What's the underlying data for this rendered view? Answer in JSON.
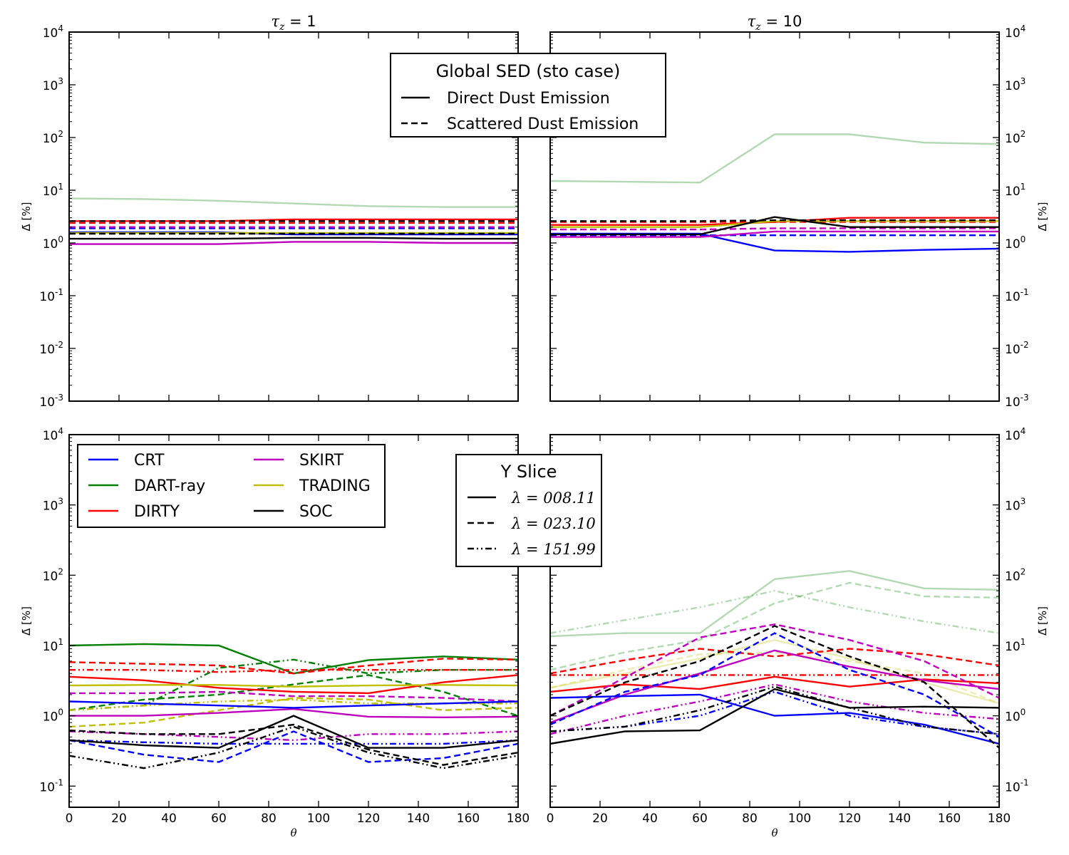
{
  "chart_data": [
    {
      "type": "line",
      "id": "top-left",
      "title_sym": "τ",
      "title_sub": "z",
      "title_value": "1",
      "ylabel": "Δ̄ [%]",
      "xlabel": "",
      "ylog": true,
      "ylim": [
        0.001,
        10000
      ],
      "xlim": [
        0,
        180
      ],
      "yticks": [
        0.001,
        0.01,
        0.1,
        1,
        10,
        100,
        1000,
        10000
      ],
      "ytick_exps": [
        "-3",
        "-2",
        "-1",
        "0",
        "1",
        "2",
        "3",
        "4"
      ],
      "xticks": [],
      "x": [
        0,
        30,
        60,
        90,
        120,
        150,
        180
      ],
      "series": [
        {
          "name": "CRT",
          "color": "#0000ff",
          "dash": "solid",
          "alpha": 1,
          "values": [
            1.6,
            1.6,
            1.6,
            1.45,
            1.45,
            1.45,
            1.45
          ]
        },
        {
          "name": "CRT",
          "color": "#0000ff",
          "dash": "dashed",
          "alpha": 1,
          "values": [
            1.9,
            1.9,
            1.9,
            1.9,
            1.9,
            1.9,
            1.9
          ]
        },
        {
          "name": "DART-ray",
          "color": "#008000",
          "dash": "solid",
          "alpha": 0.3,
          "values": [
            7.0,
            6.8,
            6.3,
            5.6,
            5.0,
            4.8,
            4.8
          ]
        },
        {
          "name": "DIRTY",
          "color": "#ff0000",
          "dash": "solid",
          "alpha": 1,
          "values": [
            2.6,
            2.6,
            2.6,
            2.8,
            2.8,
            2.8,
            2.8
          ]
        },
        {
          "name": "DIRTY",
          "color": "#ff0000",
          "dash": "dashed",
          "alpha": 1,
          "values": [
            2.4,
            2.4,
            2.4,
            2.4,
            2.4,
            2.4,
            2.4
          ]
        },
        {
          "name": "SKIRT",
          "color": "#bf00bf",
          "dash": "solid",
          "alpha": 1,
          "values": [
            0.95,
            0.95,
            0.95,
            1.05,
            1.05,
            1.0,
            1.0
          ]
        },
        {
          "name": "SKIRT",
          "color": "#bf00bf",
          "dash": "dashed",
          "alpha": 1,
          "values": [
            2.0,
            2.0,
            2.0,
            2.0,
            2.0,
            2.0,
            2.0
          ]
        },
        {
          "name": "TRADING",
          "color": "#bfbf00",
          "dash": "solid",
          "alpha": 1,
          "values": [
            1.55,
            1.55,
            1.55,
            1.55,
            1.55,
            1.55,
            1.55
          ]
        },
        {
          "name": "SOC",
          "color": "#000000",
          "dash": "solid",
          "alpha": 1,
          "values": [
            1.2,
            1.2,
            1.2,
            1.25,
            1.25,
            1.2,
            1.2
          ]
        },
        {
          "name": "SOC",
          "color": "#000000",
          "dash": "dashed",
          "alpha": 1,
          "values": [
            2.6,
            2.6,
            2.6,
            2.6,
            2.6,
            2.6,
            2.6
          ]
        },
        {
          "name": "SOC",
          "color": "#000000",
          "dash": "dashed",
          "alpha": 1,
          "values": [
            1.5,
            1.5,
            1.5,
            1.5,
            1.5,
            1.5,
            1.5
          ]
        }
      ]
    },
    {
      "type": "line",
      "id": "top-right",
      "title_sym": "τ",
      "title_sub": "z",
      "title_value": "10",
      "ylabel": "Δ̄ [%]",
      "xlabel": "",
      "ylog": true,
      "ylim": [
        0.001,
        10000
      ],
      "xlim": [
        0,
        180
      ],
      "yticks": [
        0.001,
        0.01,
        0.1,
        1,
        10,
        100,
        1000,
        10000
      ],
      "ytick_exps": [
        "-3",
        "-2",
        "-1",
        "0",
        "1",
        "2",
        "3",
        "4"
      ],
      "xticks": [],
      "x": [
        0,
        30,
        60,
        90,
        120,
        150,
        180
      ],
      "series": [
        {
          "name": "DART-ray",
          "color": "#008000",
          "dash": "solid",
          "alpha": 0.3,
          "values": [
            15,
            14.5,
            14,
            115,
            115,
            80,
            75
          ]
        },
        {
          "name": "CRT",
          "color": "#0000ff",
          "dash": "solid",
          "alpha": 1,
          "values": [
            1.5,
            1.5,
            1.5,
            0.72,
            0.68,
            0.74,
            0.78
          ]
        },
        {
          "name": "CRT",
          "color": "#0000ff",
          "dash": "dashed",
          "alpha": 1,
          "values": [
            1.4,
            1.4,
            1.4,
            1.4,
            1.4,
            1.4,
            1.4
          ]
        },
        {
          "name": "DIRTY",
          "color": "#ff0000",
          "dash": "solid",
          "alpha": 1,
          "values": [
            2.2,
            2.2,
            2.2,
            2.5,
            3.0,
            3.0,
            3.0
          ]
        },
        {
          "name": "DIRTY",
          "color": "#ff0000",
          "dash": "dashed",
          "alpha": 1,
          "values": [
            2.5,
            2.5,
            2.5,
            2.5,
            2.5,
            2.5,
            2.5
          ]
        },
        {
          "name": "SKIRT",
          "color": "#bf00bf",
          "dash": "solid",
          "alpha": 1,
          "values": [
            1.3,
            1.3,
            1.3,
            1.65,
            1.65,
            1.65,
            1.65
          ]
        },
        {
          "name": "SKIRT",
          "color": "#bf00bf",
          "dash": "dashed",
          "alpha": 1,
          "values": [
            1.8,
            1.8,
            1.8,
            1.9,
            1.9,
            1.9,
            1.9
          ]
        },
        {
          "name": "TRADING",
          "color": "#bfbf00",
          "dash": "solid",
          "alpha": 1,
          "values": [
            2.0,
            2.0,
            2.0,
            2.6,
            2.6,
            2.6,
            2.6
          ]
        },
        {
          "name": "SOC",
          "color": "#000000",
          "dash": "solid",
          "alpha": 1,
          "values": [
            1.45,
            1.45,
            1.45,
            3.1,
            2.0,
            2.0,
            2.0
          ]
        },
        {
          "name": "SOC",
          "color": "#000000",
          "dash": "dashed",
          "alpha": 1,
          "values": [
            2.6,
            2.6,
            2.6,
            2.7,
            2.7,
            2.7,
            2.7
          ]
        }
      ]
    },
    {
      "type": "line",
      "id": "bottom-left",
      "title_sym": "",
      "title_sub": "",
      "title_value": "",
      "ylabel": "Δ̄ [%]",
      "xlabel": "θ",
      "ylog": true,
      "ylim": [
        0.05,
        10000
      ],
      "xlim": [
        0,
        180
      ],
      "yticks": [
        0.1,
        1,
        10,
        100,
        1000,
        10000
      ],
      "ytick_exps": [
        "-1",
        "0",
        "1",
        "2",
        "3",
        "4"
      ],
      "xticks": [
        0,
        20,
        40,
        60,
        80,
        100,
        120,
        140,
        160,
        180
      ],
      "x": [
        0,
        30,
        60,
        90,
        120,
        150,
        180
      ],
      "series": [
        {
          "name": "DART-ray",
          "color": "#008000",
          "dash": "solid",
          "alpha": 1,
          "values": [
            10.0,
            10.5,
            10.0,
            4.0,
            6.2,
            7.0,
            6.3
          ]
        },
        {
          "name": "DART-ray",
          "color": "#008000",
          "dash": "dashed",
          "alpha": 1,
          "values": [
            1.2,
            1.7,
            2.0,
            2.8,
            3.8,
            2.2,
            1.0
          ]
        },
        {
          "name": "DART-ray",
          "color": "#008000",
          "dash": "dashdot",
          "alpha": 1,
          "values": [
            1.2,
            1.4,
            4.8,
            6.3,
            4.0,
            4.5,
            4.5
          ]
        },
        {
          "name": "DIRTY",
          "color": "#ff0000",
          "dash": "solid",
          "alpha": 1,
          "values": [
            3.6,
            3.2,
            2.5,
            2.2,
            2.1,
            3.0,
            3.8
          ]
        },
        {
          "name": "DIRTY",
          "color": "#ff0000",
          "dash": "dashed",
          "alpha": 1,
          "values": [
            5.8,
            5.5,
            5.2,
            4.0,
            5.2,
            6.5,
            6.3
          ]
        },
        {
          "name": "DIRTY",
          "color": "#ff0000",
          "dash": "dashdot",
          "alpha": 1,
          "values": [
            4.5,
            4.5,
            4.2,
            4.5,
            4.5,
            4.5,
            4.5
          ]
        },
        {
          "name": "TRADING",
          "color": "#bfbf00",
          "dash": "solid",
          "alpha": 1,
          "values": [
            2.7,
            2.75,
            2.75,
            2.6,
            2.7,
            2.75,
            2.7
          ]
        },
        {
          "name": "TRADING",
          "color": "#bfbf00",
          "dash": "dashed",
          "alpha": 1,
          "values": [
            0.7,
            0.8,
            1.2,
            1.8,
            1.7,
            1.2,
            1.3
          ]
        },
        {
          "name": "TRADING",
          "color": "#bfbf00",
          "dash": "dashdot",
          "alpha": 1,
          "values": [
            1.2,
            1.4,
            1.6,
            1.7,
            1.5,
            1.5,
            1.5
          ]
        },
        {
          "name": "SKIRT",
          "color": "#bf00bf",
          "dash": "solid",
          "alpha": 1,
          "values": [
            1.0,
            1.0,
            1.1,
            1.25,
            0.97,
            0.95,
            0.97
          ]
        },
        {
          "name": "SKIRT",
          "color": "#bf00bf",
          "dash": "dashed",
          "alpha": 1,
          "values": [
            2.1,
            2.1,
            2.2,
            1.9,
            1.9,
            1.8,
            1.6
          ]
        },
        {
          "name": "SKIRT",
          "color": "#bf00bf",
          "dash": "dashdot",
          "alpha": 1,
          "values": [
            0.6,
            0.55,
            0.5,
            0.45,
            0.55,
            0.55,
            0.6
          ]
        },
        {
          "name": "CRT",
          "color": "#0000ff",
          "dash": "solid",
          "alpha": 1,
          "values": [
            1.6,
            1.5,
            1.4,
            1.3,
            1.4,
            1.5,
            1.6
          ]
        },
        {
          "name": "CRT",
          "color": "#0000ff",
          "dash": "dashed",
          "alpha": 1,
          "values": [
            0.45,
            0.28,
            0.22,
            0.6,
            0.22,
            0.25,
            0.4
          ]
        },
        {
          "name": "CRT",
          "color": "#0000ff",
          "dash": "dashdot",
          "alpha": 1,
          "values": [
            0.45,
            0.42,
            0.4,
            0.4,
            0.4,
            0.4,
            0.45
          ]
        },
        {
          "name": "SOC",
          "color": "#000000",
          "dash": "solid",
          "alpha": 1,
          "values": [
            0.45,
            0.38,
            0.35,
            1.0,
            0.35,
            0.35,
            0.45
          ]
        },
        {
          "name": "SOC",
          "color": "#000000",
          "dash": "dashed",
          "alpha": 1,
          "values": [
            0.62,
            0.55,
            0.55,
            0.75,
            0.33,
            0.2,
            0.3
          ]
        },
        {
          "name": "SOC",
          "color": "#000000",
          "dash": "dashdot",
          "alpha": 1,
          "values": [
            0.27,
            0.18,
            0.3,
            0.7,
            0.3,
            0.18,
            0.27
          ]
        }
      ]
    },
    {
      "type": "line",
      "id": "bottom-right",
      "title_sym": "",
      "title_sub": "",
      "title_value": "",
      "ylabel": "Δ̄ [%]",
      "xlabel": "θ",
      "ylog": true,
      "ylim": [
        0.05,
        10000
      ],
      "xlim": [
        0,
        180
      ],
      "yticks": [
        0.1,
        1,
        10,
        100,
        1000,
        10000
      ],
      "ytick_exps": [
        "-1",
        "0",
        "1",
        "2",
        "3",
        "4"
      ],
      "xticks": [
        0,
        20,
        40,
        60,
        80,
        100,
        120,
        140,
        160,
        180
      ],
      "x": [
        0,
        30,
        60,
        90,
        120,
        150,
        180
      ],
      "series": [
        {
          "name": "DART-ray",
          "color": "#008000",
          "dash": "solid",
          "alpha": 0.3,
          "values": [
            13.5,
            15,
            15,
            88,
            115,
            65,
            62
          ]
        },
        {
          "name": "DART-ray",
          "color": "#008000",
          "dash": "dashed",
          "alpha": 0.3,
          "values": [
            4.5,
            8.0,
            12,
            40,
            78,
            50,
            48
          ]
        },
        {
          "name": "DART-ray",
          "color": "#008000",
          "dash": "dashdot",
          "alpha": 0.3,
          "values": [
            15,
            23,
            35,
            60,
            35,
            22,
            15
          ]
        },
        {
          "name": "TRADING",
          "color": "#bfbf00",
          "dash": "solid",
          "alpha": 0.3,
          "values": [
            2.5,
            4.0,
            6.5,
            12,
            6.5,
            3.0,
            1.5
          ]
        },
        {
          "name": "TRADING",
          "color": "#bfbf00",
          "dash": "dashed",
          "alpha": 0.3,
          "values": [
            2.5,
            4.5,
            7.5,
            8.0,
            6.0,
            4.0,
            1.5
          ]
        },
        {
          "name": "DIRTY",
          "color": "#ff0000",
          "dash": "solid",
          "alpha": 1,
          "values": [
            2.2,
            2.8,
            2.4,
            3.6,
            2.6,
            3.3,
            2.9
          ]
        },
        {
          "name": "DIRTY",
          "color": "#ff0000",
          "dash": "dashed",
          "alpha": 1,
          "values": [
            4.0,
            6.2,
            9.0,
            7.0,
            9.0,
            7.5,
            5.2
          ]
        },
        {
          "name": "DIRTY",
          "color": "#ff0000",
          "dash": "dashdot",
          "alpha": 1,
          "values": [
            3.8,
            3.8,
            3.8,
            3.8,
            3.8,
            3.8,
            3.8
          ]
        },
        {
          "name": "SKIRT",
          "color": "#bf00bf",
          "dash": "solid",
          "alpha": 1,
          "values": [
            0.8,
            2.0,
            4.0,
            8.5,
            5.0,
            3.2,
            2.4
          ]
        },
        {
          "name": "SKIRT",
          "color": "#bf00bf",
          "dash": "dashed",
          "alpha": 1,
          "values": [
            1.0,
            3.5,
            13,
            20,
            12,
            6.0,
            1.8
          ]
        },
        {
          "name": "SKIRT",
          "color": "#bf00bf",
          "dash": "dashdot",
          "alpha": 1,
          "values": [
            0.55,
            1.0,
            1.6,
            2.8,
            1.6,
            1.1,
            0.9
          ]
        },
        {
          "name": "CRT",
          "color": "#0000ff",
          "dash": "solid",
          "alpha": 1,
          "values": [
            1.8,
            1.9,
            2.0,
            1.0,
            1.1,
            0.75,
            0.4
          ]
        },
        {
          "name": "CRT",
          "color": "#0000ff",
          "dash": "dashed",
          "alpha": 1,
          "values": [
            0.75,
            2.2,
            3.8,
            15,
            4.5,
            2.0,
            0.5
          ]
        },
        {
          "name": "CRT",
          "color": "#0000ff",
          "dash": "dashdot",
          "alpha": 1,
          "values": [
            0.6,
            0.7,
            1.0,
            2.2,
            1.0,
            0.7,
            0.55
          ]
        },
        {
          "name": "SOC",
          "color": "#000000",
          "dash": "solid",
          "alpha": 1,
          "values": [
            0.4,
            0.6,
            0.62,
            2.4,
            1.3,
            1.35,
            1.3
          ]
        },
        {
          "name": "SOC",
          "color": "#000000",
          "dash": "dashed",
          "alpha": 1,
          "values": [
            1.0,
            3.0,
            6.0,
            19,
            7.0,
            3.0,
            0.35
          ]
        },
        {
          "name": "SOC",
          "color": "#000000",
          "dash": "dashdot",
          "alpha": 1,
          "values": [
            0.6,
            0.7,
            1.2,
            2.6,
            1.3,
            0.7,
            0.55
          ]
        }
      ]
    }
  ],
  "legend_sed": {
    "title": "Global SED (sto case)",
    "items": [
      {
        "label": "Direct Dust Emission",
        "dash": "solid"
      },
      {
        "label": "Scattered Dust Emission",
        "dash": "dashed"
      }
    ]
  },
  "legend_codes": {
    "items": [
      {
        "label": "CRT",
        "color": "#0000ff"
      },
      {
        "label": "DART-ray",
        "color": "#008000"
      },
      {
        "label": "DIRTY",
        "color": "#ff0000"
      },
      {
        "label": "SKIRT",
        "color": "#bf00bf"
      },
      {
        "label": "TRADING",
        "color": "#bfbf00"
      },
      {
        "label": "SOC",
        "color": "#000000"
      }
    ]
  },
  "legend_slice": {
    "title": "Y Slice",
    "lambda_symbol": "λ",
    "items": [
      {
        "label": "008.11",
        "dash": "solid"
      },
      {
        "label": "023.10",
        "dash": "dashed"
      },
      {
        "label": "151.99",
        "dash": "dashdot"
      }
    ]
  }
}
